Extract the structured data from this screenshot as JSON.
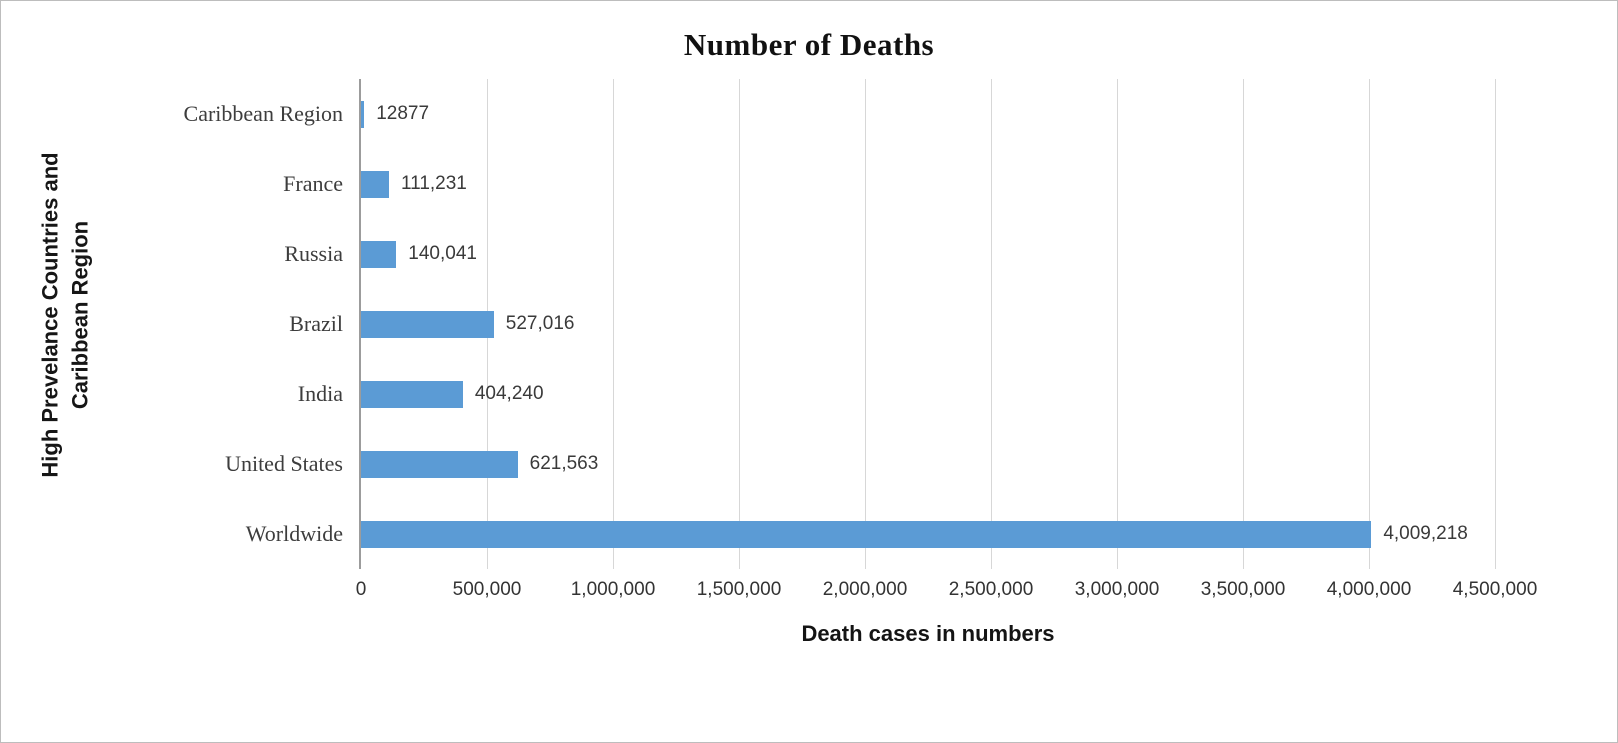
{
  "chart_data": {
    "type": "bar",
    "orientation": "horizontal",
    "title": "Number of Deaths",
    "xlabel": "Death cases in numbers",
    "ylabel": "High Prevelance Countries and Caribbean Region",
    "ylabel_lines": [
      "High Prevelance Countries and",
      "Caribbean Region"
    ],
    "categories": [
      "Caribbean Region",
      "France",
      "Russia",
      "Brazil",
      "India",
      "United States",
      "Worldwide"
    ],
    "values": [
      12877,
      111231,
      140041,
      527016,
      404240,
      621563,
      4009218
    ],
    "value_labels": [
      "12877",
      "111,231",
      "140,041",
      "527,016",
      "404,240",
      "621,563",
      "4,009,218"
    ],
    "xlim": [
      0,
      4500000
    ],
    "x_tick_interval": 500000,
    "x_tick_labels": [
      "0",
      "500,000",
      "1,000,000",
      "1,500,000",
      "2,000,000",
      "2,500,000",
      "3,000,000",
      "3,500,000",
      "4,000,000",
      "4,500,000"
    ],
    "grid": true,
    "legend": "none",
    "bar_color": "#5b9bd5",
    "gridline_color": "#d7d7d7",
    "axis_line_color": "#9c9c9c"
  }
}
